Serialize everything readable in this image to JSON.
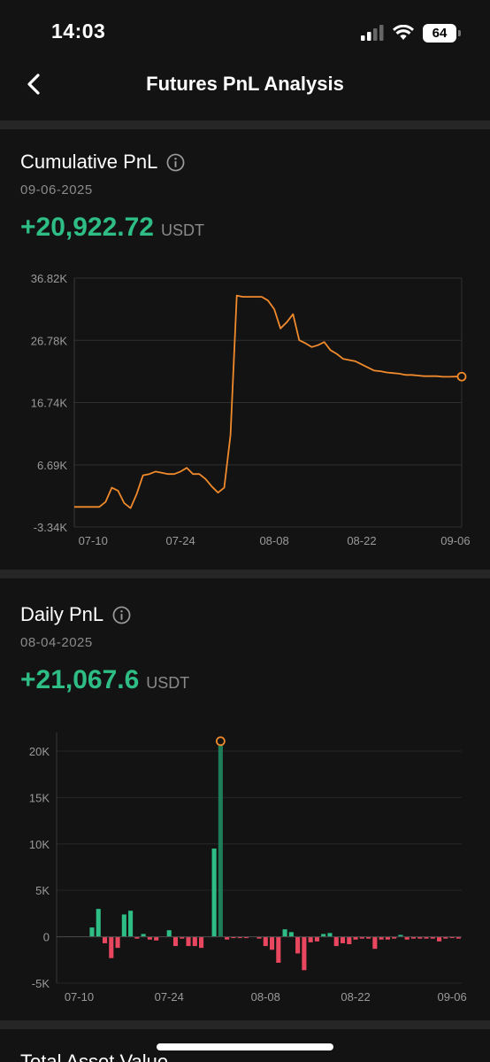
{
  "status_bar": {
    "time": "14:03",
    "battery": "64"
  },
  "header": {
    "title": "Futures PnL Analysis"
  },
  "cumulative": {
    "title": "Cumulative PnL",
    "date": "09-06-2025",
    "value": "+20,922.72",
    "unit": "USDT",
    "chart_data": {
      "type": "line",
      "title": "",
      "ylim": [
        -3340,
        36820
      ],
      "ytick_labels": [
        "36.82K",
        "26.78K",
        "16.74K",
        "6.69K",
        "-3.34K"
      ],
      "yticks": [
        36820,
        26780,
        16740,
        6690,
        -3340
      ],
      "xtick_labels": [
        "07-10",
        "07-24",
        "08-08",
        "08-22",
        "09-06"
      ],
      "xticks": [
        3,
        17,
        32,
        46,
        61
      ],
      "x": [
        0,
        1,
        2,
        3,
        4,
        5,
        6,
        7,
        8,
        9,
        10,
        11,
        12,
        13,
        14,
        15,
        16,
        17,
        18,
        19,
        20,
        21,
        22,
        23,
        24,
        25,
        26,
        27,
        28,
        29,
        30,
        31,
        32,
        33,
        34,
        35,
        36,
        37,
        38,
        39,
        40,
        41,
        42,
        43,
        44,
        45,
        46,
        47,
        48,
        49,
        50,
        51,
        52,
        53,
        54,
        55,
        56,
        57,
        58,
        59,
        60,
        61,
        62
      ],
      "values": [
        -100,
        -100,
        -100,
        -100,
        -100,
        700,
        3000,
        2500,
        500,
        -300,
        2000,
        5000,
        5200,
        5600,
        5400,
        5200,
        5200,
        5600,
        6200,
        5200,
        5200,
        4400,
        3200,
        2200,
        3000,
        11500,
        34000,
        33800,
        33800,
        33800,
        33800,
        33200,
        31800,
        28700,
        29700,
        31000,
        26800,
        26300,
        25700,
        26000,
        26500,
        25200,
        24600,
        23800,
        23600,
        23400,
        22900,
        22400,
        21900,
        21800,
        21600,
        21500,
        21400,
        21200,
        21200,
        21100,
        21000,
        21000,
        21000,
        20900,
        20900,
        20923,
        20923
      ],
      "highlight_index": 62
    }
  },
  "daily": {
    "title": "Daily PnL",
    "date": "08-04-2025",
    "value": "+21,067.6",
    "unit": "USDT",
    "chart_data": {
      "type": "bar",
      "title": "",
      "ylim": [
        -5000,
        22000
      ],
      "ytick_labels": [
        "20K",
        "15K",
        "10K",
        "5K",
        "0",
        "-5K"
      ],
      "yticks": [
        20000,
        15000,
        10000,
        5000,
        0,
        -5000
      ],
      "xtick_labels": [
        "07-10",
        "07-24",
        "08-08",
        "08-22",
        "09-06"
      ],
      "xticks": [
        3,
        17,
        32,
        46,
        61
      ],
      "x": [
        0,
        1,
        2,
        3,
        4,
        5,
        6,
        7,
        8,
        9,
        10,
        11,
        12,
        13,
        14,
        15,
        16,
        17,
        18,
        19,
        20,
        21,
        22,
        23,
        24,
        25,
        26,
        27,
        28,
        29,
        30,
        31,
        32,
        33,
        34,
        35,
        36,
        37,
        38,
        39,
        40,
        41,
        42,
        43,
        44,
        45,
        46,
        47,
        48,
        49,
        50,
        51,
        52,
        53,
        54,
        55,
        56,
        57,
        58,
        59,
        60,
        61,
        62
      ],
      "values": [
        0,
        0,
        0,
        0,
        0,
        1000,
        3000,
        -700,
        -2300,
        -1200,
        2400,
        2800,
        -200,
        300,
        -300,
        -400,
        0,
        700,
        -1000,
        -200,
        -1000,
        -1000,
        -1200,
        0,
        9500,
        21068,
        -300,
        -100,
        -100,
        -100,
        0,
        -200,
        -1000,
        -1400,
        -2800,
        800,
        500,
        -1800,
        -3600,
        -600,
        -500,
        300,
        400,
        -1000,
        -700,
        -800,
        -300,
        -200,
        -200,
        -1300,
        -300,
        -300,
        -200,
        200,
        -300,
        -200,
        -200,
        -200,
        -200,
        -500,
        -200,
        -100,
        -200
      ],
      "highlight_index": 25,
      "colors": {
        "positive": "#2ebd85",
        "negative": "#e8475f",
        "highlight": "#1e7d59"
      }
    }
  },
  "next_section": {
    "title": "Total Asset Value"
  },
  "colors": {
    "accent_green": "#2ebd85",
    "line_orange": "#f08a2c",
    "negative_red": "#e8475f"
  }
}
